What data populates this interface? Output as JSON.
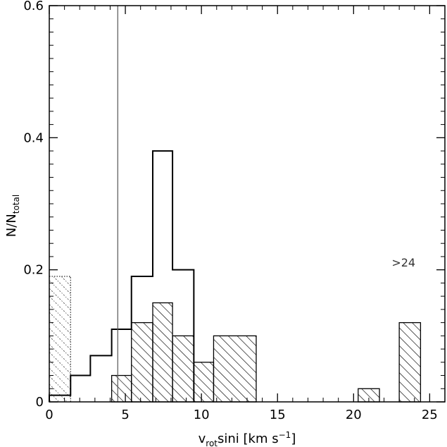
{
  "chart_data": {
    "type": "bar",
    "title": "",
    "xlabel": {
      "base": "v",
      "sub": "rot",
      "rest": "sini  [km s",
      "sup": "−1",
      "close": "]"
    },
    "ylabel": {
      "base": "N/N",
      "sub": "total"
    },
    "xlim": [
      0,
      26
    ],
    "ylim": [
      0,
      0.6
    ],
    "xticks": [
      0,
      5,
      10,
      15,
      20,
      25
    ],
    "yticks": [
      0,
      0.2,
      0.4,
      0.6
    ],
    "xtick_labels": [
      "0",
      "5",
      "10",
      "15",
      "20",
      "25"
    ],
    "ytick_labels": [
      "0",
      "0.2",
      "0.4",
      "0.6"
    ],
    "grid": false,
    "reference_line_x": 4.5,
    "annotation": {
      "text": ">24",
      "x": 22.5,
      "y": 0.205
    },
    "series": [
      {
        "style": "step-outline",
        "bins": [
          {
            "x0": 0.0,
            "x1": 1.4,
            "y": 0.01
          },
          {
            "x0": 1.4,
            "x1": 2.7,
            "y": 0.04
          },
          {
            "x0": 2.7,
            "x1": 4.1,
            "y": 0.07
          },
          {
            "x0": 4.1,
            "x1": 5.4,
            "y": 0.11
          },
          {
            "x0": 5.4,
            "x1": 6.8,
            "y": 0.19
          },
          {
            "x0": 6.8,
            "x1": 8.1,
            "y": 0.38
          },
          {
            "x0": 8.1,
            "x1": 9.5,
            "y": 0.2
          }
        ]
      },
      {
        "style": "dense-hatch",
        "bins": [
          {
            "x0": 4.1,
            "x1": 5.4,
            "y": 0.04
          },
          {
            "x0": 5.4,
            "x1": 6.8,
            "y": 0.12
          },
          {
            "x0": 6.8,
            "x1": 8.1,
            "y": 0.15
          },
          {
            "x0": 8.1,
            "x1": 9.5,
            "y": 0.1
          },
          {
            "x0": 9.5,
            "x1": 10.8,
            "y": 0.06
          },
          {
            "x0": 10.8,
            "x1": 13.6,
            "y": 0.1
          },
          {
            "x0": 20.3,
            "x1": 21.7,
            "y": 0.02
          },
          {
            "x0": 23.0,
            "x1": 24.4,
            "y": 0.12
          }
        ]
      },
      {
        "style": "dotted-hatch",
        "bins": [
          {
            "x0": 0.0,
            "x1": 1.4,
            "y": 0.19
          }
        ]
      }
    ]
  }
}
